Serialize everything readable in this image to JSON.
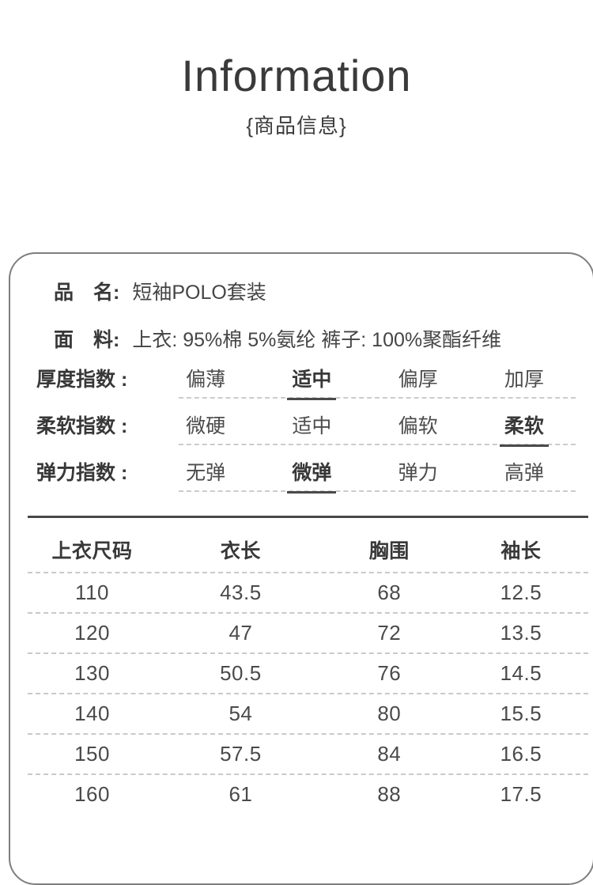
{
  "header": {
    "title": "Information",
    "subtitle": "{商品信息}"
  },
  "product": {
    "fields": [
      {
        "label": "品　名:",
        "value": "短袖POLO套装"
      },
      {
        "label": "面　料:",
        "value": "上衣: 95%棉 5%氨纶  裤子: 100%聚酯纤维"
      }
    ],
    "indexes": [
      {
        "label": "厚度指数 :",
        "options": [
          "偏薄",
          "适中",
          "偏厚",
          "加厚"
        ],
        "selected": 1
      },
      {
        "label": "柔软指数 :",
        "options": [
          "微硬",
          "适中",
          "偏软",
          "柔软"
        ],
        "selected": 3
      },
      {
        "label": "弹力指数 :",
        "options": [
          "无弹",
          "微弹",
          "弹力",
          "高弹"
        ],
        "selected": 1
      }
    ]
  },
  "size_table": {
    "headers": [
      "上衣尺码",
      "衣长",
      "胸围",
      "袖长"
    ],
    "rows": [
      [
        "110",
        "43.5",
        "68",
        "12.5"
      ],
      [
        "120",
        "47",
        "72",
        "13.5"
      ],
      [
        "130",
        "50.5",
        "76",
        "14.5"
      ],
      [
        "140",
        "54",
        "80",
        "15.5"
      ],
      [
        "150",
        "57.5",
        "84",
        "16.5"
      ],
      [
        "160",
        "61",
        "88",
        "17.5"
      ]
    ]
  },
  "colors": {
    "text": "#454545",
    "emphasis": "#383838",
    "solid_rule": "#4a4a4a",
    "dash_line": "#cbcbcb",
    "card_border": "#7e7e7e",
    "background": "#ffffff"
  }
}
